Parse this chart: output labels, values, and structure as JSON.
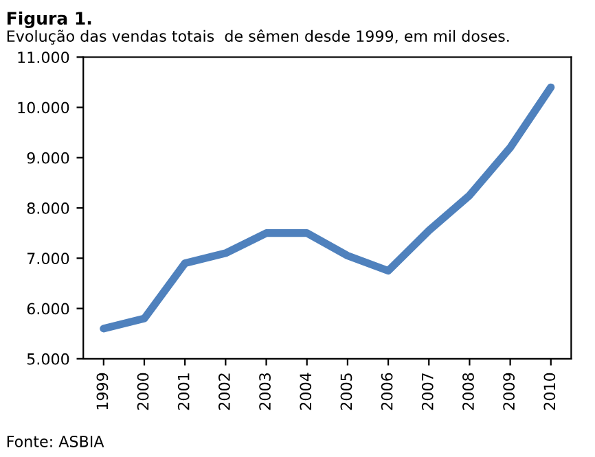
{
  "chart_data": {
    "type": "line",
    "title": "Figura 1.",
    "subtitle": "Evolução das vendas totais  de sêmen desde 1999, em mil doses.",
    "categories": [
      "1999",
      "2000",
      "2001",
      "2002",
      "2003",
      "2004",
      "2005",
      "2006",
      "2007",
      "2008",
      "2009",
      "2010"
    ],
    "series": [
      {
        "color": "#4f81bd",
        "values": [
          5600,
          5800,
          6900,
          7100,
          7500,
          7500,
          7050,
          6750,
          7550,
          8250,
          9200,
          10400
        ]
      }
    ],
    "ylim": [
      5000,
      11000
    ],
    "yticks": [
      {
        "value": 5000,
        "label": "5.000"
      },
      {
        "value": 6000,
        "label": "6.000"
      },
      {
        "value": 7000,
        "label": "7.000"
      },
      {
        "value": 8000,
        "label": "8.000"
      },
      {
        "value": 9000,
        "label": "9.000"
      },
      {
        "value": 10000,
        "label": "10.000"
      },
      {
        "value": 11000,
        "label": "11.000"
      }
    ],
    "grid": false,
    "legend": false,
    "marker": "none",
    "line_style": "solid",
    "annotations": [
      "Fonte: ASBIA"
    ]
  }
}
